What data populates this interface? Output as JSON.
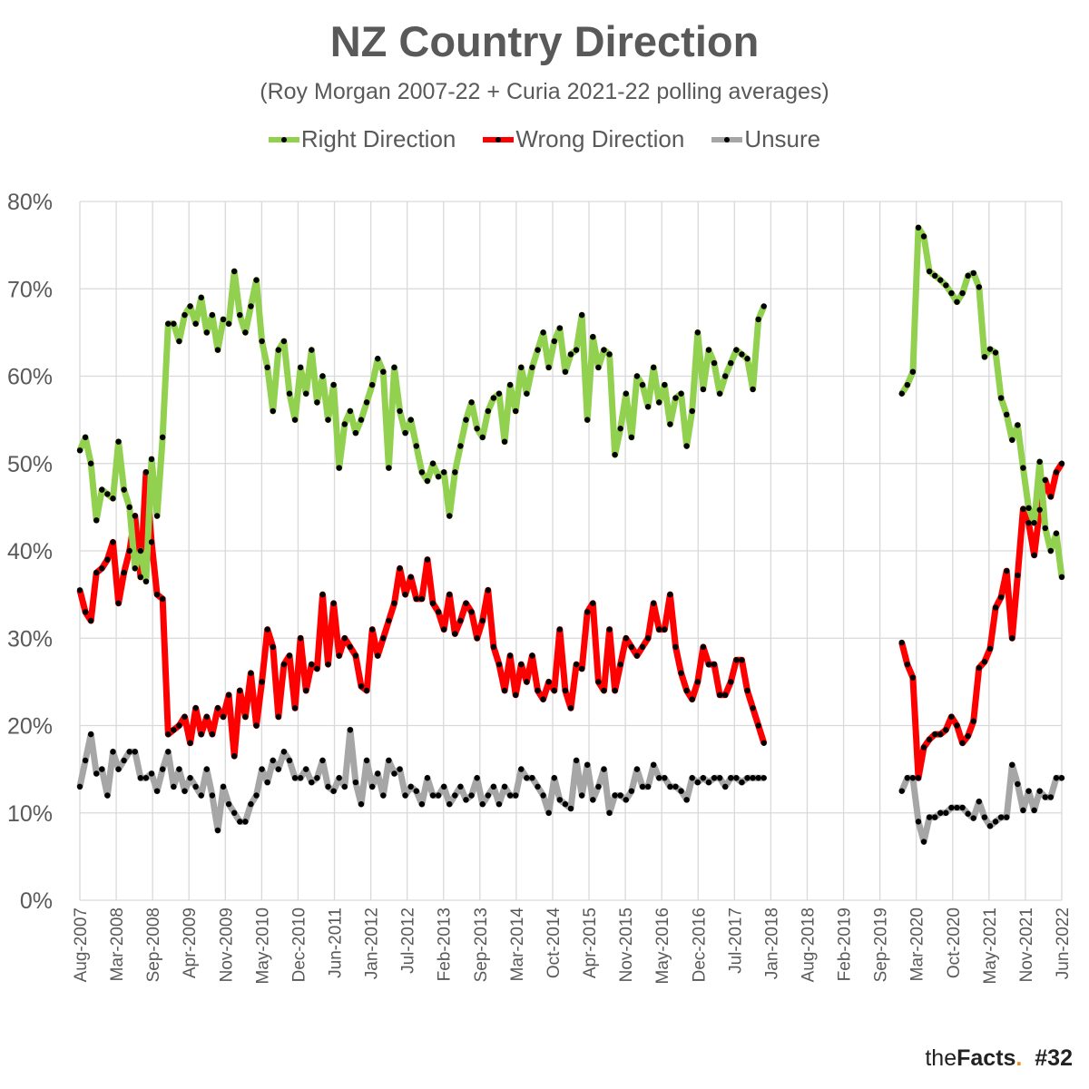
{
  "chart_data": {
    "type": "line",
    "title": "NZ Country Direction",
    "subtitle": "(Roy Morgan 2007-22 + Curia 2021-22 polling averages)",
    "xlabel": "",
    "ylabel": "",
    "ylim": [
      0,
      80
    ],
    "yticks": [
      "0%",
      "10%",
      "20%",
      "30%",
      "40%",
      "50%",
      "60%",
      "70%",
      "80%"
    ],
    "x_start": "Aug-2007",
    "x_step": "1 month",
    "x_months_total": 178,
    "xticks": [
      "Aug-2007",
      "Mar-2008",
      "Sep-2008",
      "Apr-2009",
      "Nov-2009",
      "May-2010",
      "Dec-2010",
      "Jun-2011",
      "Jan-2012",
      "Jul-2012",
      "Feb-2013",
      "Sep-2013",
      "Mar-2014",
      "Oct-2014",
      "Apr-2015",
      "Nov-2015",
      "May-2016",
      "Dec-2016",
      "Jul-2017",
      "Jan-2018",
      "Aug-2018",
      "Feb-2019",
      "Sep-2019",
      "Mar-2020",
      "Oct-2020",
      "May-2021",
      "Nov-2021",
      "Jun-2022"
    ],
    "grid": true,
    "legend_position": "top",
    "series": [
      {
        "name": "Right Direction",
        "color": "#92d050",
        "seg1": [
          51.5,
          53,
          50,
          43.5,
          47,
          46.5,
          46,
          52.5,
          47,
          45,
          38,
          40,
          36.5,
          50.5,
          44,
          53,
          66,
          66,
          64,
          67,
          68,
          66,
          69,
          65,
          67,
          63,
          66.5,
          66,
          72,
          67,
          65,
          68,
          71,
          64,
          61,
          56,
          63,
          64,
          58,
          55,
          61,
          58,
          63,
          57,
          60,
          55,
          59,
          49.5,
          54.5,
          56,
          53.5,
          55,
          57,
          59,
          62,
          60.5,
          49.5,
          61,
          56,
          53.5,
          55,
          52,
          49,
          48,
          50,
          48.5,
          49,
          44,
          49,
          52,
          55,
          57,
          54,
          53,
          56,
          57.5,
          58,
          52.5,
          59,
          56,
          61,
          58,
          61,
          63,
          65,
          61,
          64,
          65.5,
          60.5,
          62.5,
          63,
          67,
          55,
          64.5,
          61,
          63,
          62.5,
          51,
          54,
          58,
          53,
          60,
          59,
          56.5,
          61,
          57,
          59,
          54.5,
          57.5,
          58,
          52,
          56,
          65,
          58.5,
          63,
          61.5,
          58,
          60,
          61.5,
          63,
          62.5,
          62,
          58.5,
          66.5,
          68
        ],
        "seg2": [
          58,
          59,
          60.5,
          77,
          76,
          72,
          71.5,
          71,
          70.4,
          69.5,
          68.5,
          69.5,
          71.5,
          71.8,
          70.2,
          62.2,
          63.1,
          62.7,
          57.5,
          55.6,
          52.7,
          54.4,
          49.5,
          44.9,
          43.2,
          50.2,
          42.6,
          40,
          42,
          37
        ]
      },
      {
        "name": "Wrong Direction",
        "color": "#ff0000",
        "seg1": [
          35.5,
          33,
          32,
          37.5,
          38,
          39,
          41,
          34,
          37.5,
          40,
          44,
          37,
          49,
          41,
          35,
          34.5,
          19,
          19.5,
          20,
          21,
          18,
          22,
          19,
          21,
          19,
          22,
          21,
          23.5,
          16.5,
          24,
          21,
          26,
          20,
          25,
          31,
          29,
          21,
          27,
          28,
          22,
          30,
          24,
          27,
          26.5,
          35,
          27,
          34,
          28,
          30,
          29,
          28,
          24.5,
          24,
          31,
          28,
          30,
          32,
          34,
          38,
          35,
          37,
          34.5,
          34.5,
          39,
          34,
          33,
          31,
          35,
          30.5,
          32,
          34,
          33,
          30,
          32,
          35.5,
          29,
          27,
          24,
          28,
          23.5,
          27,
          25,
          28,
          24,
          23,
          25,
          24,
          31,
          24,
          22,
          27,
          26.5,
          33,
          34,
          25,
          24,
          31,
          24,
          27,
          30,
          29,
          28,
          29,
          30,
          34,
          31,
          31,
          35,
          29,
          26,
          24,
          23,
          25,
          29,
          27,
          27,
          23.5,
          23.5,
          25,
          27.5,
          27.5,
          24,
          22,
          20,
          18
        ],
        "seg2": [
          29.5,
          27,
          25.5,
          14,
          17.5,
          18.4,
          19,
          19,
          19.5,
          21,
          20,
          18,
          18.8,
          20.5,
          26.6,
          27.3,
          28.8,
          33.5,
          34.7,
          37.7,
          30,
          37.2,
          44.8,
          43.2,
          39.5,
          44.7,
          48.1,
          46.2,
          49,
          50
        ]
      },
      {
        "name": "Unsure",
        "color": "#a6a6a6",
        "seg1": [
          13,
          16,
          19,
          14.5,
          15,
          12,
          17,
          15,
          16,
          17,
          17,
          14,
          14,
          14.5,
          12.5,
          15,
          17,
          13,
          15,
          12.5,
          14,
          13,
          12,
          15,
          12,
          8,
          13,
          11,
          10,
          9,
          9,
          11,
          12,
          15,
          13.5,
          16,
          15,
          17,
          16,
          14,
          14,
          15,
          13.5,
          14,
          16,
          13,
          12.5,
          14,
          13,
          19.5,
          13.5,
          11,
          16,
          13,
          14.5,
          12,
          16,
          14.5,
          15,
          12,
          13,
          12.5,
          11,
          14,
          12,
          12,
          13,
          11,
          12,
          13,
          11.5,
          12,
          14,
          11,
          12,
          13,
          11,
          13,
          12,
          12,
          15,
          14,
          14,
          13,
          12,
          10,
          14,
          11.5,
          11,
          10.5,
          16,
          12,
          15.5,
          11.5,
          13,
          15,
          10,
          12,
          12,
          11.5,
          12.5,
          15,
          13,
          13,
          15.5,
          14,
          14,
          13,
          13,
          12.5,
          11.5,
          14,
          13.5,
          14,
          13.5,
          14,
          14,
          13,
          14,
          14,
          13.5,
          14,
          14,
          14,
          14
        ],
        "seg2": [
          12.5,
          14,
          14,
          9,
          6.7,
          9.5,
          9.5,
          10,
          10,
          10.6,
          10.6,
          10.6,
          9.9,
          9.4,
          11.3,
          9.5,
          8.5,
          9,
          9.5,
          9.5,
          15.5,
          13.3,
          10.3,
          12.5,
          10.3,
          12.5,
          11.8,
          11.8,
          14,
          14
        ]
      }
    ],
    "seg1_start_month_index": 0,
    "seg2_start_month_index": 149
  },
  "branding": {
    "logo_light": "the",
    "logo_bold": "Facts",
    "logo_dot": ".",
    "issue": "#32"
  }
}
